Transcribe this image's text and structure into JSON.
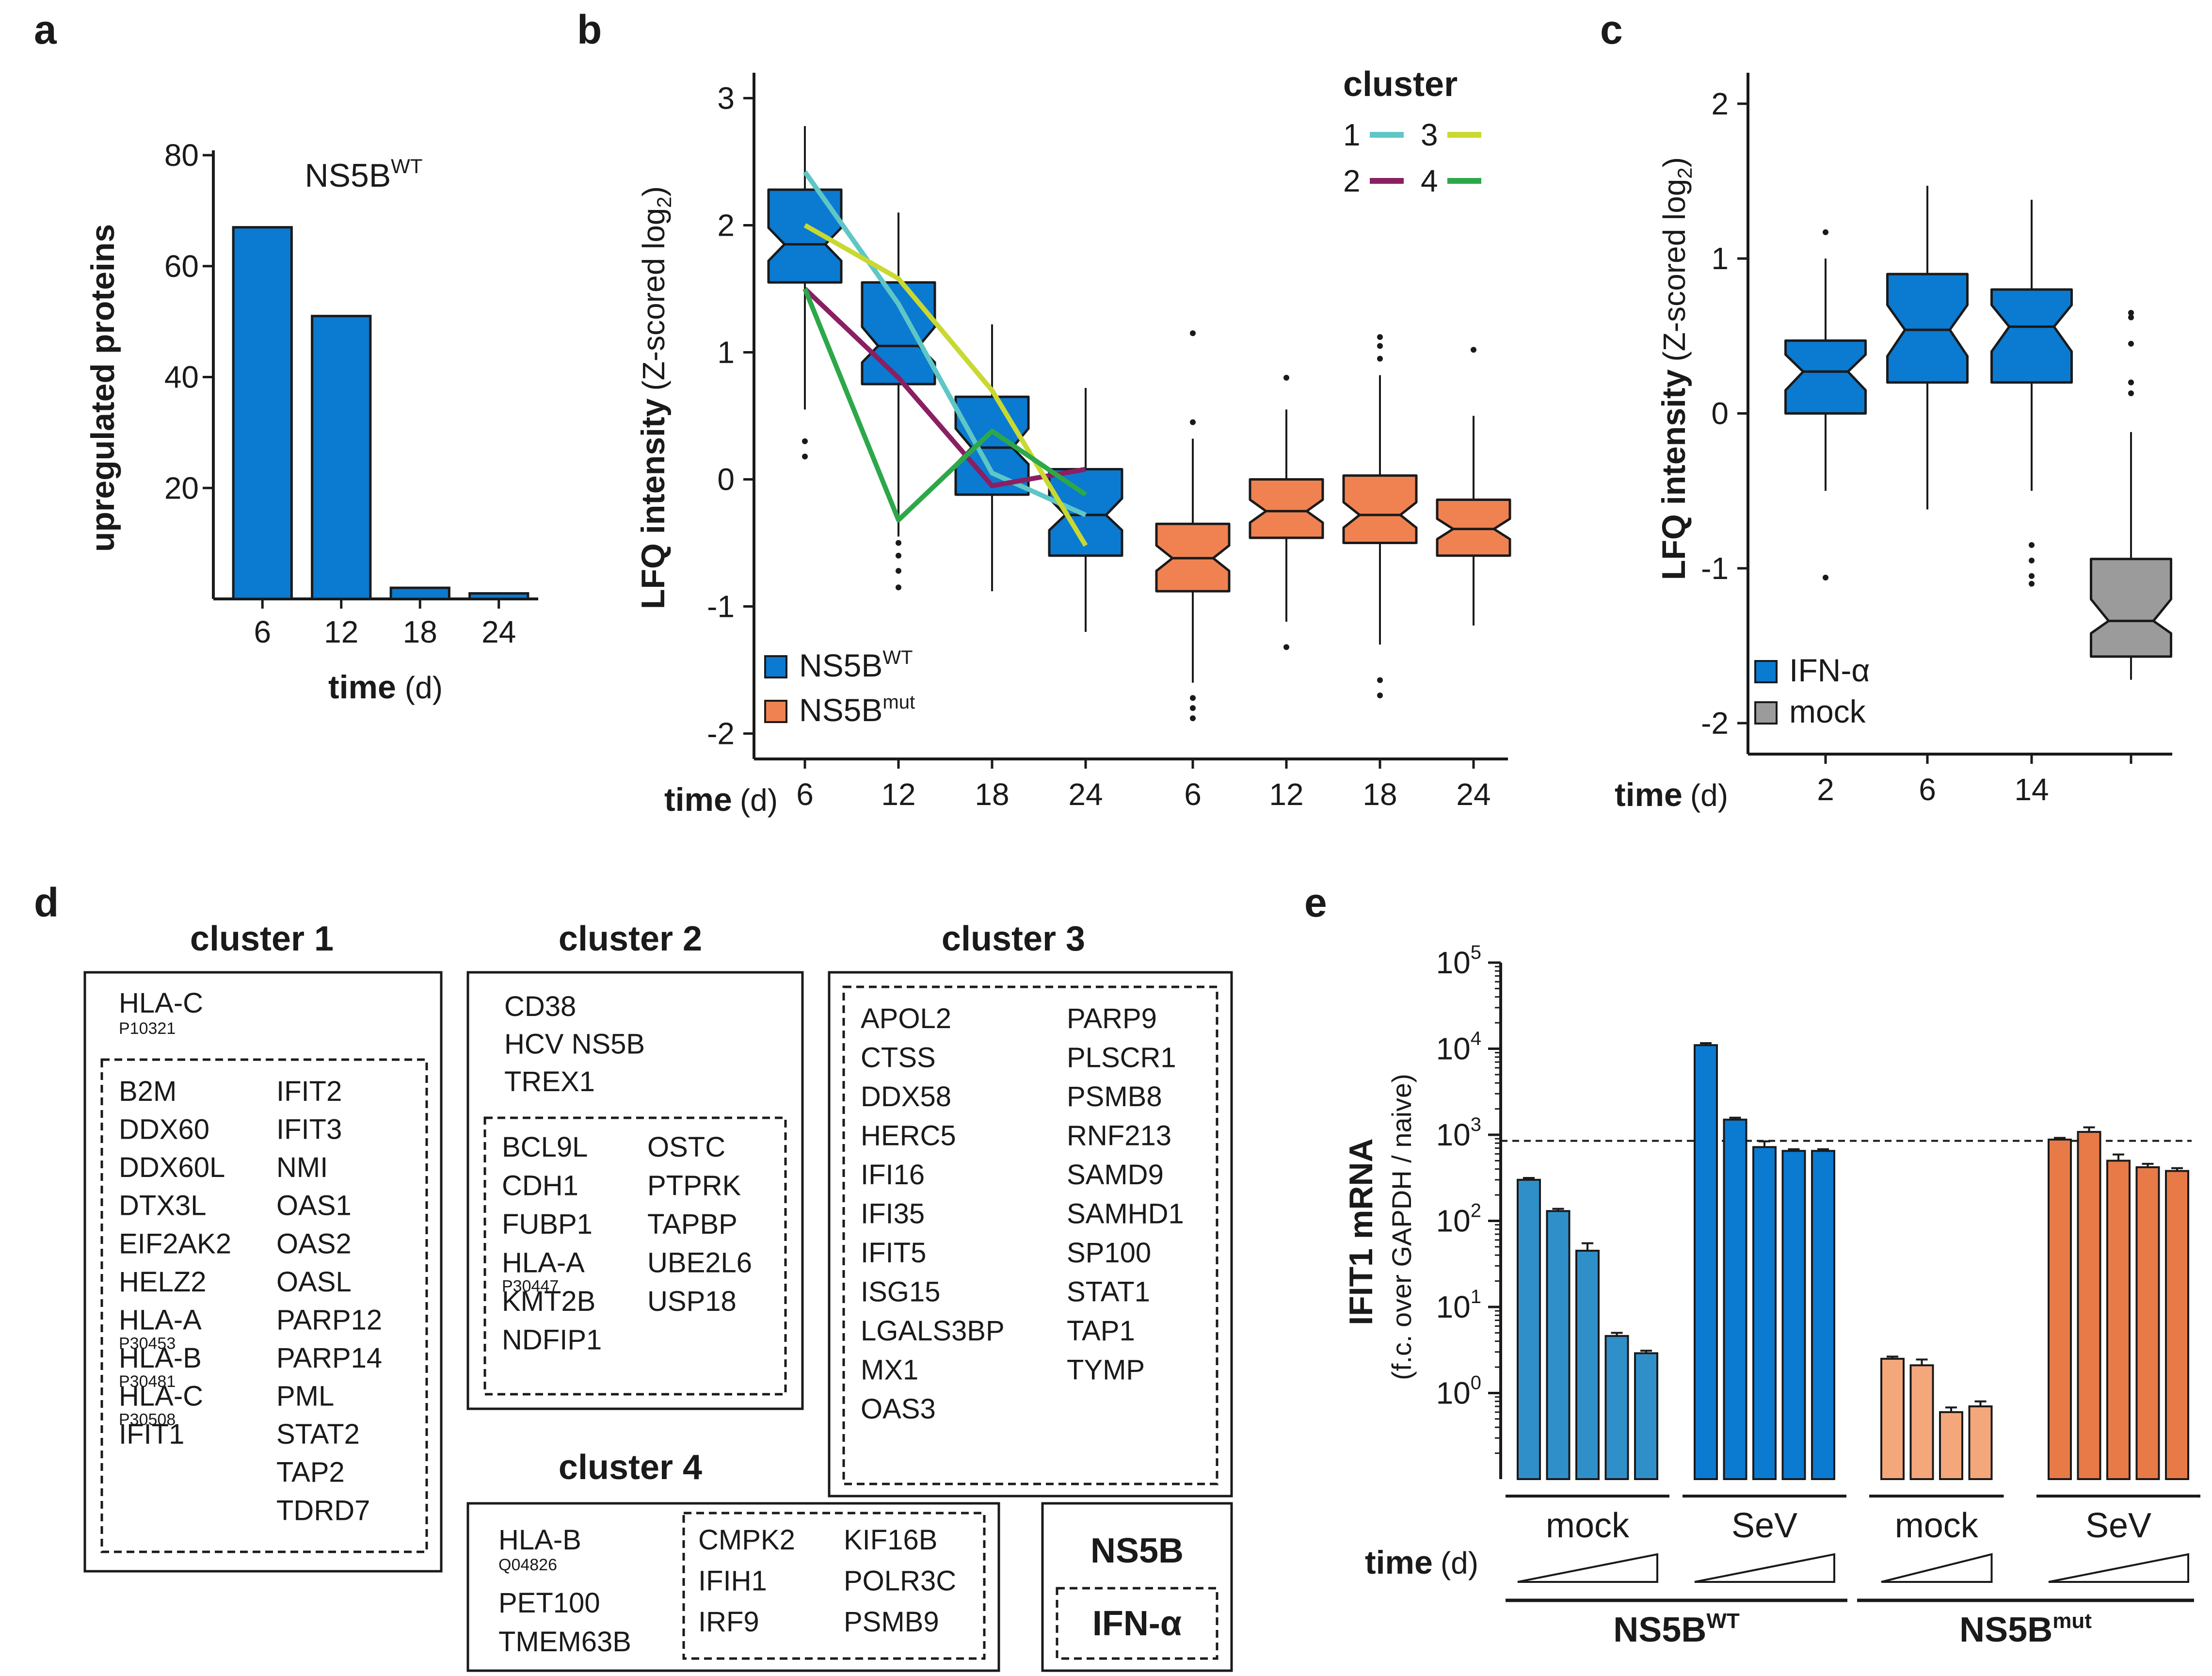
{
  "panels": {
    "a": "a",
    "b": "b",
    "c": "c",
    "d": "d",
    "e": "e"
  },
  "chart_data": [
    {
      "id": "a",
      "type": "bar",
      "title_main": "NS5B",
      "title_sup": "WT",
      "ylabel": "upregulated proteins",
      "xlabel_bold": "time",
      "xlabel_unit": "(d)",
      "categories": [
        "6",
        "12",
        "18",
        "24"
      ],
      "values": [
        67,
        51,
        2,
        1
      ],
      "ylim": [
        0,
        80
      ],
      "yticks": [
        "20",
        "40",
        "60",
        "80"
      ],
      "color": "#0b7ad1"
    },
    {
      "id": "b",
      "type": "box",
      "ylabel_bold": "LFQ intensity",
      "ylabel_rest": "(Z-scored log",
      "ylabel_sub": "2",
      "ylabel_close": ")",
      "xlabel_bold": "time",
      "xlabel_unit": "(d)",
      "ylim": [
        -2.2,
        3.2
      ],
      "yticks": [
        "-2",
        "-1",
        "0",
        "1",
        "2",
        "3"
      ],
      "categories": [
        "6",
        "12",
        "18",
        "24",
        "6",
        "12",
        "18",
        "24"
      ],
      "boxes": [
        {
          "group": "wt",
          "q1": 1.55,
          "med": 1.85,
          "q3": 2.28,
          "lo": 0.55,
          "hi": 2.78,
          "nlo": 1.72,
          "nhi": 1.98,
          "out": [
            0.3,
            0.18
          ]
        },
        {
          "group": "wt",
          "q1": 0.75,
          "med": 1.05,
          "q3": 1.55,
          "lo": -0.45,
          "hi": 2.1,
          "nlo": 0.92,
          "nhi": 1.2,
          "out": [
            -0.5,
            -0.6,
            -0.72,
            -0.85
          ]
        },
        {
          "group": "wt",
          "q1": -0.12,
          "med": 0.25,
          "q3": 0.65,
          "lo": -0.88,
          "hi": 1.22,
          "nlo": 0.12,
          "nhi": 0.4,
          "out": []
        },
        {
          "group": "wt",
          "q1": -0.6,
          "med": -0.28,
          "q3": 0.08,
          "lo": -1.2,
          "hi": 0.72,
          "nlo": -0.4,
          "nhi": -0.15,
          "out": []
        },
        {
          "group": "mut",
          "q1": -0.88,
          "med": -0.62,
          "q3": -0.35,
          "lo": -1.6,
          "hi": 0.32,
          "nlo": -0.72,
          "nhi": -0.52,
          "out": [
            -1.72,
            -1.8,
            -1.88,
            0.45,
            1.15
          ]
        },
        {
          "group": "mut",
          "q1": -0.46,
          "med": -0.25,
          "q3": 0.0,
          "lo": -1.12,
          "hi": 0.55,
          "nlo": -0.34,
          "nhi": -0.16,
          "out": [
            -1.32,
            0.8
          ]
        },
        {
          "group": "mut",
          "q1": -0.5,
          "med": -0.28,
          "q3": 0.03,
          "lo": -1.3,
          "hi": 0.82,
          "nlo": -0.38,
          "nhi": -0.18,
          "out": [
            -1.58,
            -1.7,
            0.95,
            1.05,
            1.12
          ]
        },
        {
          "group": "mut",
          "q1": -0.6,
          "med": -0.39,
          "q3": -0.16,
          "lo": -1.15,
          "hi": 0.5,
          "nlo": -0.47,
          "nhi": -0.31,
          "out": [
            1.02
          ]
        }
      ],
      "legend_title": "cluster",
      "clusters": [
        {
          "name": "1",
          "color": "#5ec6c6",
          "values": [
            2.42,
            1.38,
            0.05,
            -0.28
          ]
        },
        {
          "name": "2",
          "color": "#8a1f62",
          "values": [
            1.5,
            0.8,
            -0.05,
            0.08
          ]
        },
        {
          "name": "3",
          "color": "#c9d832",
          "values": [
            2.0,
            1.58,
            0.7,
            -0.52
          ]
        },
        {
          "name": "4",
          "color": "#2ca84a",
          "values": [
            1.5,
            -0.32,
            0.38,
            -0.12
          ]
        }
      ],
      "legend": [
        {
          "label": "NS5B",
          "sup": "WT",
          "color": "#0b7ad1"
        },
        {
          "label": "NS5B",
          "sup": "mut",
          "color": "#f08251"
        }
      ]
    },
    {
      "id": "c",
      "type": "box",
      "ylabel_bold": "LFQ intensity",
      "ylabel_rest": "(Z-scored log",
      "ylabel_sub": "2",
      "ylabel_close": ")",
      "xlabel_bold": "time",
      "xlabel_unit": "(d)",
      "ylim": [
        -2.2,
        2.2
      ],
      "yticks": [
        "-2",
        "-1",
        "0",
        "1",
        "2"
      ],
      "categories": [
        "2",
        "6",
        "14",
        ""
      ],
      "boxes": [
        {
          "group": "ifn",
          "q1": 0.0,
          "med": 0.27,
          "q3": 0.47,
          "lo": -0.5,
          "hi": 1.0,
          "nlo": 0.15,
          "nhi": 0.38,
          "out": [
            1.17,
            -1.06
          ]
        },
        {
          "group": "ifn",
          "q1": 0.2,
          "med": 0.54,
          "q3": 0.9,
          "lo": -0.62,
          "hi": 1.47,
          "nlo": 0.37,
          "nhi": 0.7,
          "out": []
        },
        {
          "group": "ifn",
          "q1": 0.2,
          "med": 0.56,
          "q3": 0.8,
          "lo": -0.5,
          "hi": 1.38,
          "nlo": 0.4,
          "nhi": 0.7,
          "out": [
            -0.85,
            -0.95,
            -1.05,
            -1.1
          ]
        },
        {
          "group": "mock",
          "q1": -1.57,
          "med": -1.34,
          "q3": -0.94,
          "lo": -1.72,
          "hi": -0.12,
          "nlo": -1.42,
          "nhi": -1.2,
          "out": [
            0.65,
            0.62,
            0.45,
            0.2,
            0.13
          ]
        }
      ],
      "legend": [
        {
          "label": "IFN-α",
          "color": "#0b7ad1"
        },
        {
          "label": "mock",
          "color": "#9b9b9b"
        }
      ]
    },
    {
      "id": "e",
      "type": "bar",
      "ylabel": "IFIT1 mRNA",
      "ylabel2": "(f.c. over GAPDH / naive)",
      "yscale": "log",
      "ylim": [
        0.1,
        100000
      ],
      "yticks": [
        {
          "base": "10",
          "exp": "0"
        },
        {
          "base": "10",
          "exp": "1"
        },
        {
          "base": "10",
          "exp": "2"
        },
        {
          "base": "10",
          "exp": "3"
        },
        {
          "base": "10",
          "exp": "4"
        },
        {
          "base": "10",
          "exp": "5"
        }
      ],
      "threshold": 850,
      "xlabel_bold": "time",
      "xlabel_unit": "(d)",
      "groups": [
        {
          "label": "mock",
          "color": "#2f90c9",
          "values": [
            300,
            130,
            45,
            4.6,
            2.9
          ],
          "err": [
            15,
            8,
            10,
            0.4,
            0.2
          ]
        },
        {
          "label": "SeV",
          "color": "#0b7ad1",
          "values": [
            11000,
            1500,
            720,
            650,
            650
          ],
          "err": [
            600,
            80,
            120,
            30,
            30
          ]
        },
        {
          "label": "mock",
          "color": "#f5a77c",
          "values": [
            2.5,
            2.1,
            0.6,
            0.7
          ],
          "err": [
            0.15,
            0.35,
            0.08,
            0.1
          ]
        },
        {
          "label": "SeV",
          "color": "#e87a47",
          "values": [
            880,
            1080,
            500,
            420,
            380
          ],
          "err": [
            40,
            140,
            90,
            40,
            30
          ]
        }
      ],
      "super": [
        {
          "label": "NS5B",
          "sup": "WT"
        },
        {
          "label": "NS5B",
          "sup": "mut"
        }
      ]
    }
  ],
  "clusters_panel": {
    "c1": {
      "title": "cluster 1",
      "ns5b": [
        {
          "g": "HLA-C",
          "a": "P10321"
        }
      ],
      "ifn_left": [
        {
          "g": "B2M"
        },
        {
          "g": "DDX60"
        },
        {
          "g": "DDX60L"
        },
        {
          "g": "DTX3L"
        },
        {
          "g": "EIF2AK2"
        },
        {
          "g": "HELZ2"
        },
        {
          "g": "HLA-A",
          "a": "P30453"
        },
        {
          "g": "HLA-B",
          "a": "P30481"
        },
        {
          "g": "HLA-C",
          "a": "P30508"
        },
        {
          "g": "IFIT1"
        }
      ],
      "ifn_right": [
        {
          "g": "IFIT2"
        },
        {
          "g": "IFIT3"
        },
        {
          "g": "NMI"
        },
        {
          "g": "OAS1"
        },
        {
          "g": "OAS2"
        },
        {
          "g": "OASL"
        },
        {
          "g": "PARP12"
        },
        {
          "g": "PARP14"
        },
        {
          "g": "PML"
        },
        {
          "g": "STAT2"
        },
        {
          "g": "TAP2"
        },
        {
          "g": "TDRD7"
        }
      ]
    },
    "c2": {
      "title": "cluster 2",
      "ns5b": [
        {
          "g": "CD38"
        },
        {
          "g": "HCV NS5B"
        },
        {
          "g": "TREX1"
        }
      ],
      "ifn_left": [
        {
          "g": "BCL9L"
        },
        {
          "g": "CDH1"
        },
        {
          "g": "FUBP1"
        },
        {
          "g": "HLA-A",
          "a": "P30447"
        },
        {
          "g": "KMT2B"
        },
        {
          "g": "NDFIP1"
        }
      ],
      "ifn_right": [
        {
          "g": "OSTC"
        },
        {
          "g": "PTPRK"
        },
        {
          "g": "TAPBP"
        },
        {
          "g": "UBE2L6"
        },
        {
          "g": "USP18"
        }
      ]
    },
    "c3": {
      "title": "cluster 3",
      "ifn_left": [
        {
          "g": "APOL2"
        },
        {
          "g": "CTSS"
        },
        {
          "g": "DDX58"
        },
        {
          "g": "HERC5"
        },
        {
          "g": "IFI16"
        },
        {
          "g": "IFI35"
        },
        {
          "g": "IFIT5"
        },
        {
          "g": "ISG15"
        },
        {
          "g": "LGALS3BP"
        },
        {
          "g": "MX1"
        },
        {
          "g": "OAS3"
        }
      ],
      "ifn_right": [
        {
          "g": "PARP9"
        },
        {
          "g": "PLSCR1"
        },
        {
          "g": "PSMB8"
        },
        {
          "g": "RNF213"
        },
        {
          "g": "SAMD9"
        },
        {
          "g": "SAMHD1"
        },
        {
          "g": "SP100"
        },
        {
          "g": "STAT1"
        },
        {
          "g": "TAP1"
        },
        {
          "g": "TYMP"
        }
      ]
    },
    "c4": {
      "title": "cluster 4",
      "ns5b": [
        {
          "g": "HLA-B",
          "a": "Q04826"
        },
        {
          "g": "PET100"
        },
        {
          "g": "TMEM63B"
        }
      ],
      "ifn_left": [
        {
          "g": "CMPK2"
        },
        {
          "g": "IFIH1"
        },
        {
          "g": "IRF9"
        }
      ],
      "ifn_right": [
        {
          "g": "KIF16B"
        },
        {
          "g": "POLR3C"
        },
        {
          "g": "PSMB9"
        }
      ]
    },
    "key": {
      "ns5b": "NS5B",
      "ifn": "IFN-α"
    }
  }
}
